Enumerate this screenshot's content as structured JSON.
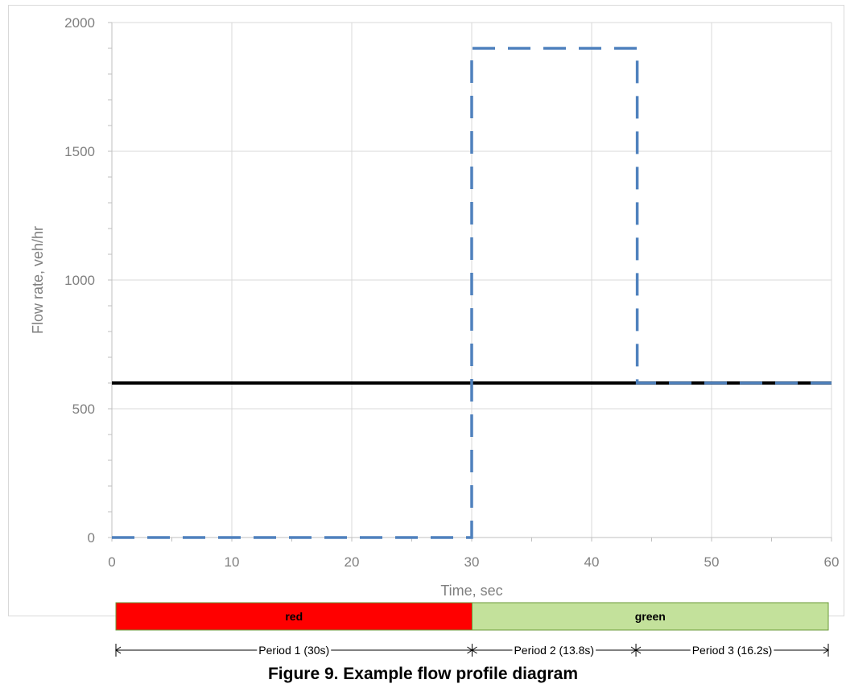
{
  "figure": {
    "caption": "Figure 9. Example flow profile diagram"
  },
  "chart_data": {
    "type": "line",
    "xlabel": "Time, sec",
    "ylabel": "Flow rate, veh/hr",
    "xlim": [
      0,
      60
    ],
    "ylim": [
      0,
      2000
    ],
    "xticks": [
      0,
      10,
      20,
      30,
      40,
      50,
      60
    ],
    "yticks": [
      0,
      500,
      1000,
      1500,
      2000
    ],
    "grid": true,
    "series": [
      {
        "style": "solid",
        "color": "#000000",
        "x": [
          0,
          60
        ],
        "y": [
          600,
          600
        ]
      },
      {
        "style": "dashed",
        "color": "#4f81bd",
        "x": [
          0,
          30,
          30,
          43.8,
          43.8,
          60
        ],
        "y": [
          0,
          0,
          1900,
          1900,
          600,
          600
        ]
      }
    ],
    "signal_phases": [
      {
        "label": "red",
        "start": 0,
        "end": 30,
        "color": "#ff0000"
      },
      {
        "label": "green",
        "start": 30,
        "end": 60,
        "color": "#c3e19b"
      }
    ],
    "periods": [
      {
        "label": "Period 1 (30s)",
        "start": 0,
        "end": 30
      },
      {
        "label": "Period 2 (13.8s)",
        "start": 30,
        "end": 43.8
      },
      {
        "label": "Period 3 (16.2s)",
        "start": 43.8,
        "end": 60
      }
    ]
  }
}
